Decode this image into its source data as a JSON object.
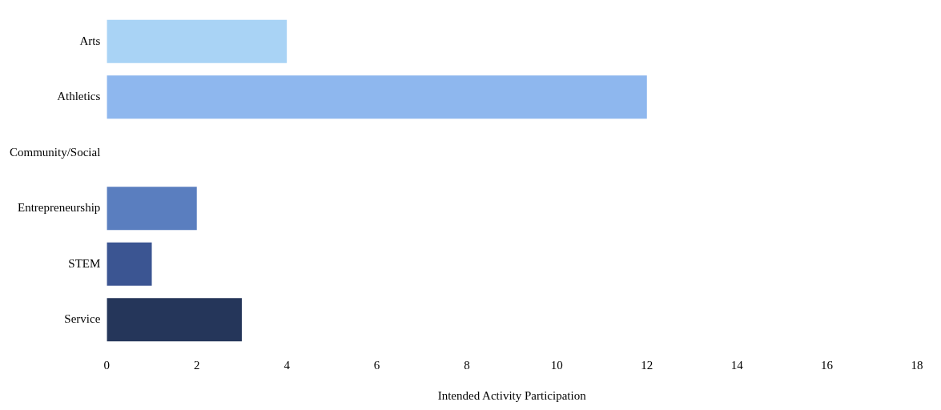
{
  "chart_data": {
    "type": "bar",
    "orientation": "horizontal",
    "xlabel": "Intended Activity Participation",
    "categories": [
      "Arts",
      "Athletics",
      "Community/Social",
      "Entrepreneurship",
      "STEM",
      "Service"
    ],
    "values": [
      4,
      12,
      0,
      2,
      1,
      3
    ],
    "colors": [
      "#a9d3f5",
      "#8eb7ee",
      "#cfe3f7",
      "#5a7ebf",
      "#3b5592",
      "#25365a"
    ],
    "xlim": [
      0,
      18
    ],
    "xticks": [
      0,
      2,
      4,
      6,
      8,
      10,
      12,
      14,
      16,
      18
    ],
    "grid": false
  }
}
